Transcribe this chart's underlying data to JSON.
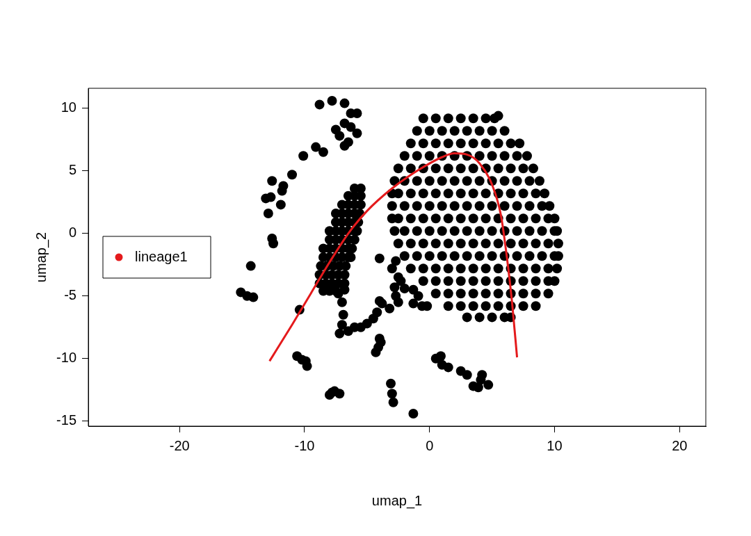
{
  "chart_data": {
    "type": "scatter",
    "xlabel": "umap_1",
    "ylabel": "umap_2",
    "xlim": [
      -27.3,
      22.1
    ],
    "ylim": [
      -15.4,
      11.6
    ],
    "xticks": [
      -20,
      -10,
      0,
      10,
      20
    ],
    "yticks": [
      -15,
      -10,
      -5,
      0,
      5,
      10
    ],
    "grid": false,
    "legend": "left",
    "marker": "circle",
    "series": [
      {
        "type": "scatter",
        "color": "#000000",
        "x": [
          -8.8,
          -7.8,
          -6.8,
          -6.3,
          -5.8,
          -6.8,
          -7.5,
          -6.3,
          -7.2,
          -6.5,
          -5.8,
          -6.8,
          -9.1,
          -8.5,
          -10.1,
          -11,
          -12.6,
          -11.7,
          -11.8,
          -13.1,
          -12.7,
          -11.9,
          -12.9,
          -12.6,
          -12.5,
          -14.3,
          -15.1,
          -14.6,
          -14.1,
          -10.4,
          -10.6,
          -10.2,
          -9.9,
          -9.8,
          -8,
          -7.6,
          -7.2,
          -7.8,
          -3.1,
          -3,
          -2.9,
          -1.3,
          0.5,
          0.9,
          1,
          1.5,
          2.5,
          3,
          3.5,
          3.9,
          4.2,
          4.1,
          4.7,
          -4.3,
          -4.1,
          -3.9,
          -4,
          -4,
          -3,
          -2.7,
          -2.5,
          -2.3,
          -2.8,
          -2.7,
          -2.5,
          -2,
          -1.3,
          -0.9,
          -1.3,
          -0.6,
          -0.2,
          -3.2,
          -3.8,
          -4,
          -7,
          -6.9,
          -7,
          -7.2,
          -6.5,
          -6,
          -5.5,
          -5,
          -4.5,
          -4.2,
          -7.3,
          -6.8,
          -6,
          -5.5,
          -6.5,
          -6,
          -5.5,
          -7,
          -6.5,
          -6,
          -5.5,
          -7.5,
          -7,
          -6.5,
          -6,
          -5.6,
          -7.5,
          -7,
          -6.5,
          -6,
          -5.7,
          -8,
          -7.5,
          -7,
          -6.5,
          -6,
          -5.8,
          -8,
          -7.5,
          -7,
          -6.5,
          -6,
          -8.5,
          -8,
          -7.5,
          -7,
          -6.5,
          -6.2,
          -8.5,
          -8,
          -7.5,
          -7,
          -6.5,
          -6.3,
          -8.7,
          -8.2,
          -7.7,
          -7.2,
          -6.7,
          -8.8,
          -8.3,
          -7.8,
          -7.3,
          -6.8,
          -8.8,
          -8.3,
          -7.8,
          -7.3,
          -6.8,
          -8.5,
          -8,
          -7.5,
          5.5,
          -0.5,
          0.5,
          1.5,
          2.5,
          3.5,
          4.5,
          5.2,
          -1,
          0,
          1,
          2,
          3,
          4,
          5,
          6,
          -1.5,
          -0.5,
          0.5,
          1.5,
          2.5,
          3.5,
          4.5,
          5.5,
          6.5,
          7.2,
          -2,
          -1,
          0,
          1,
          2,
          3,
          4,
          5,
          6,
          7,
          7.8,
          -2.5,
          -1.5,
          -0.5,
          0.5,
          1.5,
          2.5,
          3.5,
          4.5,
          5.5,
          6.5,
          7.5,
          8.3,
          -2.8,
          -2,
          -1,
          0,
          1,
          2,
          3,
          4,
          5,
          6,
          7,
          8,
          8.8,
          -3,
          -2.5,
          -1.5,
          -0.5,
          0.5,
          1.5,
          2.5,
          3.5,
          4.5,
          5.5,
          6.5,
          7.5,
          8.5,
          9.2,
          -3,
          -2,
          -1,
          0,
          1,
          2,
          3,
          4,
          5,
          6,
          7,
          8,
          9,
          9.6,
          -3,
          -2.5,
          -1.5,
          -0.5,
          0.5,
          1.5,
          2.5,
          3.5,
          4.5,
          5.5,
          6.5,
          7.5,
          8.5,
          9.5,
          10,
          -2.8,
          -2,
          -1,
          0,
          1,
          2,
          3,
          4,
          5,
          6,
          7,
          8,
          9,
          10,
          10.2,
          -2.5,
          -1.5,
          -0.5,
          0.5,
          1.5,
          2.5,
          3.5,
          4.5,
          5.5,
          6.5,
          7.5,
          8.5,
          9.5,
          10.3,
          -2,
          -1,
          0,
          1,
          2,
          3,
          4,
          5,
          6,
          7,
          8,
          9,
          10,
          10.3,
          -1.5,
          -0.5,
          0.5,
          1.5,
          2.5,
          3.5,
          4.5,
          5.5,
          6.5,
          7.5,
          8.5,
          9.5,
          10.2,
          -0.5,
          0.5,
          1.5,
          2.5,
          3.5,
          4.5,
          5.5,
          6.5,
          7.5,
          8.5,
          9.5,
          10,
          0.5,
          1.5,
          2.5,
          3.5,
          4.5,
          5.5,
          6.5,
          7.5,
          8.5,
          9.5,
          1.5,
          2.5,
          3.5,
          4.5,
          5.5,
          6.5,
          7.5,
          8.5,
          3,
          4,
          5,
          6,
          6.5
        ],
        "values": [
          10.3,
          10.6,
          10.4,
          9.6,
          9.6,
          8.8,
          8.3,
          8.5,
          7.8,
          7.3,
          8,
          7,
          6.9,
          6.5,
          6.2,
          4.7,
          4.2,
          3.8,
          3.4,
          2.8,
          2.9,
          2.3,
          1.6,
          -0.4,
          -0.8,
          -2.6,
          -4.7,
          -5,
          -5.1,
          -6.1,
          -9.8,
          -10.1,
          -10.2,
          -10.6,
          -12.9,
          -12.6,
          -12.8,
          -12.7,
          -12,
          -12.8,
          -13.5,
          -14.4,
          -10,
          -9.8,
          -10.5,
          -10.7,
          -11,
          -11.3,
          -12.2,
          -12.3,
          -11.3,
          -11.7,
          -12.1,
          -9.5,
          -9.1,
          -8.7,
          -8.4,
          -2,
          -2.8,
          -2.2,
          -3.5,
          -3.8,
          -4.3,
          -5,
          -5.5,
          -4.4,
          -4.5,
          -5,
          -5.6,
          -5.8,
          -5.8,
          -6,
          -5.6,
          -5.4,
          -5.5,
          -6.5,
          -7.3,
          -8,
          -7.8,
          -7.5,
          -7.5,
          -7.2,
          -6.8,
          -6.3,
          -4.8,
          -4.5,
          3.6,
          3.6,
          3,
          3,
          3,
          2.3,
          2.3,
          2.3,
          2.3,
          1.6,
          1.6,
          1.6,
          1.6,
          1.6,
          0.9,
          0.9,
          0.9,
          0.9,
          0.9,
          0.2,
          0.2,
          0.2,
          0.2,
          0.2,
          0.2,
          -0.5,
          -0.5,
          -0.5,
          -0.5,
          -0.5,
          -1.2,
          -1.2,
          -1.2,
          -1.2,
          -1.2,
          -1.2,
          -1.9,
          -1.9,
          -1.9,
          -1.9,
          -1.9,
          -1.9,
          -2.6,
          -2.6,
          -2.6,
          -2.6,
          -2.6,
          -3.3,
          -3.3,
          -3.3,
          -3.3,
          -3.3,
          -4,
          -4,
          -4,
          -4,
          -4,
          -4.6,
          -4.6,
          -4.6,
          9.4,
          9.2,
          9.2,
          9.2,
          9.2,
          9.2,
          9.2,
          9.2,
          8.2,
          8.2,
          8.2,
          8.2,
          8.2,
          8.2,
          8.2,
          8.2,
          7.2,
          7.2,
          7.2,
          7.2,
          7.2,
          7.2,
          7.2,
          7.2,
          7.2,
          7.2,
          6.2,
          6.2,
          6.2,
          6.2,
          6.2,
          6.2,
          6.2,
          6.2,
          6.2,
          6.2,
          6.2,
          5.2,
          5.2,
          5.2,
          5.2,
          5.2,
          5.2,
          5.2,
          5.2,
          5.2,
          5.2,
          5.2,
          5.2,
          4.2,
          4.2,
          4.2,
          4.2,
          4.2,
          4.2,
          4.2,
          4.2,
          4.2,
          4.2,
          4.2,
          4.2,
          4.2,
          3.2,
          3.2,
          3.2,
          3.2,
          3.2,
          3.2,
          3.2,
          3.2,
          3.2,
          3.2,
          3.2,
          3.2,
          3.2,
          3.2,
          2.2,
          2.2,
          2.2,
          2.2,
          2.2,
          2.2,
          2.2,
          2.2,
          2.2,
          2.2,
          2.2,
          2.2,
          2.2,
          2.2,
          1.2,
          1.2,
          1.2,
          1.2,
          1.2,
          1.2,
          1.2,
          1.2,
          1.2,
          1.2,
          1.2,
          1.2,
          1.2,
          1.2,
          1.2,
          0.2,
          0.2,
          0.2,
          0.2,
          0.2,
          0.2,
          0.2,
          0.2,
          0.2,
          0.2,
          0.2,
          0.2,
          0.2,
          0.2,
          0.2,
          -0.8,
          -0.8,
          -0.8,
          -0.8,
          -0.8,
          -0.8,
          -0.8,
          -0.8,
          -0.8,
          -0.8,
          -0.8,
          -0.8,
          -0.8,
          -0.8,
          -1.8,
          -1.8,
          -1.8,
          -1.8,
          -1.8,
          -1.8,
          -1.8,
          -1.8,
          -1.8,
          -1.8,
          -1.8,
          -1.8,
          -1.8,
          -1.8,
          -2.8,
          -2.8,
          -2.8,
          -2.8,
          -2.8,
          -2.8,
          -2.8,
          -2.8,
          -2.8,
          -2.8,
          -2.8,
          -2.8,
          -2.8,
          -3.8,
          -3.8,
          -3.8,
          -3.8,
          -3.8,
          -3.8,
          -3.8,
          -3.8,
          -3.8,
          -3.8,
          -3.8,
          -3.8,
          -4.8,
          -4.8,
          -4.8,
          -4.8,
          -4.8,
          -4.8,
          -4.8,
          -4.8,
          -4.8,
          -4.8,
          -5.8,
          -5.8,
          -5.8,
          -5.8,
          -5.8,
          -5.8,
          -5.8,
          -5.8,
          -6.7,
          -6.7,
          -6.7,
          -6.7,
          -6.7
        ]
      },
      {
        "type": "line",
        "name": "lineage1",
        "color": "#e41a1c",
        "marker": "none",
        "x": [
          -12.8,
          -11,
          -9.5,
          -8,
          -6.5,
          -5,
          -3,
          -1,
          1,
          2,
          3,
          4,
          5,
          5.7,
          6.2,
          6.6,
          7
        ],
        "values": [
          -10.2,
          -7.3,
          -4.8,
          -2.3,
          0,
          1.8,
          3.6,
          5,
          6.1,
          6.4,
          6.3,
          5.6,
          3.9,
          1.5,
          -2,
          -5.5,
          -9.9
        ]
      }
    ]
  }
}
